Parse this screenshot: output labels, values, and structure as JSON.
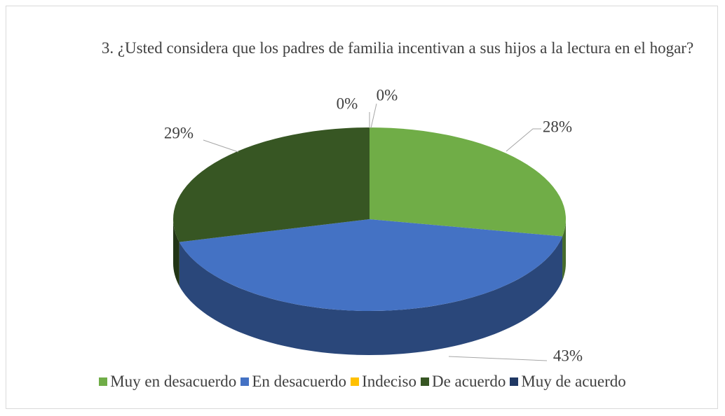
{
  "chart_data": {
    "type": "pie",
    "title": "3. ¿Usted considera que los padres de familia incentivan a sus hijos a la lectura en el hogar?",
    "categories": [
      "Muy en desacuerdo",
      "En desacuerdo",
      "Indeciso",
      "De acuerdo",
      "Muy de acuerdo"
    ],
    "values": [
      28,
      43,
      0,
      29,
      0
    ],
    "value_labels": [
      "28%",
      "43%",
      "0%",
      "29%",
      "0%"
    ],
    "colors": [
      "#70ad47",
      "#4472c4",
      "#ffc000",
      "#375623",
      "#203864"
    ],
    "legend": "bottom"
  }
}
